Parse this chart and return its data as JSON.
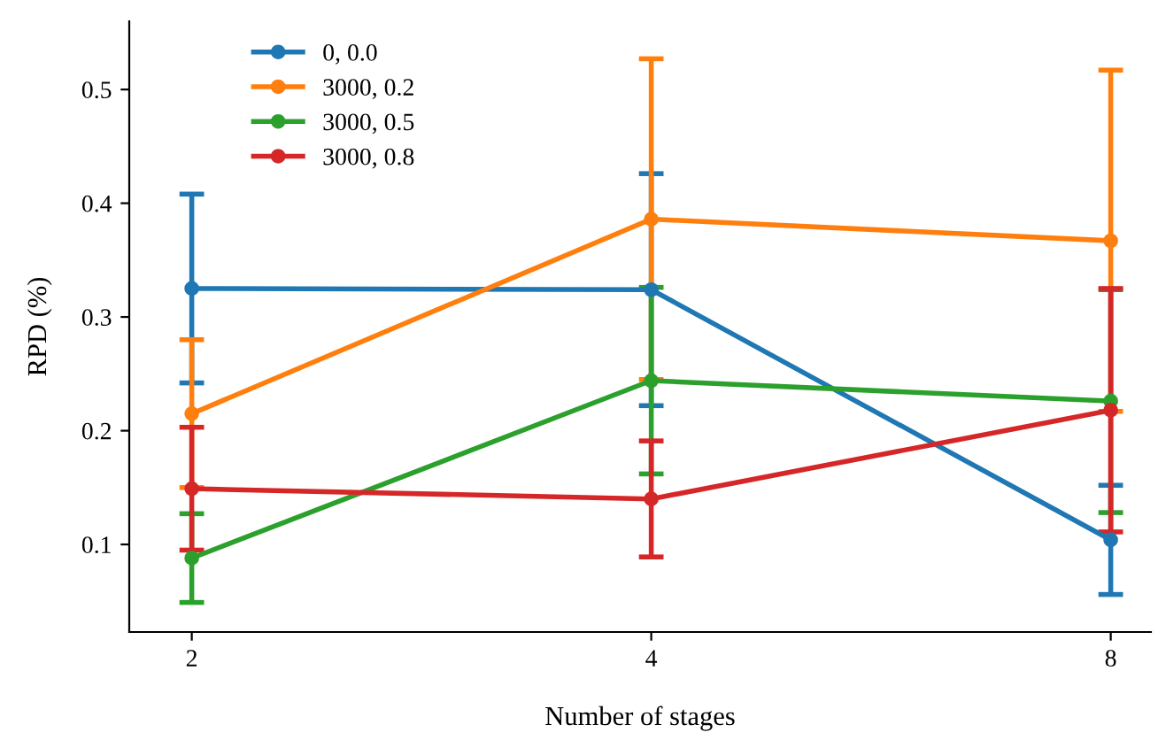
{
  "chart_data": {
    "type": "line",
    "xlabel": "Number of stages",
    "ylabel": "RPD (%)",
    "x": [
      2,
      4,
      8
    ],
    "log": "x",
    "xlim": [
      1.82,
      8.5
    ],
    "xticks": [
      2,
      4,
      8
    ],
    "series": [
      {
        "name": "0, 0.0",
        "color": "#1f77b4",
        "values": [
          0.325,
          0.324,
          0.104
        ],
        "errors": [
          0.083,
          0.102,
          0.048
        ]
      },
      {
        "name": "3000, 0.2",
        "color": "#ff7f0e",
        "values": [
          0.215,
          0.386,
          0.367
        ],
        "errors": [
          0.065,
          0.141,
          0.15
        ]
      },
      {
        "name": "3000, 0.5",
        "color": "#2ca02c",
        "values": [
          0.088,
          0.244,
          0.226
        ],
        "errors": [
          0.039,
          0.082,
          0.098
        ]
      },
      {
        "name": "3000, 0.8",
        "color": "#d62728",
        "values": [
          0.149,
          0.14,
          0.218
        ],
        "errors": [
          0.054,
          0.051,
          0.107
        ]
      }
    ],
    "ylim": [
      0.023,
      0.56
    ],
    "yticks": [
      0.1,
      0.2,
      0.3,
      0.4,
      0.5
    ],
    "marker": "circle",
    "line_style": "solid",
    "legend": "top left",
    "grid": false
  }
}
